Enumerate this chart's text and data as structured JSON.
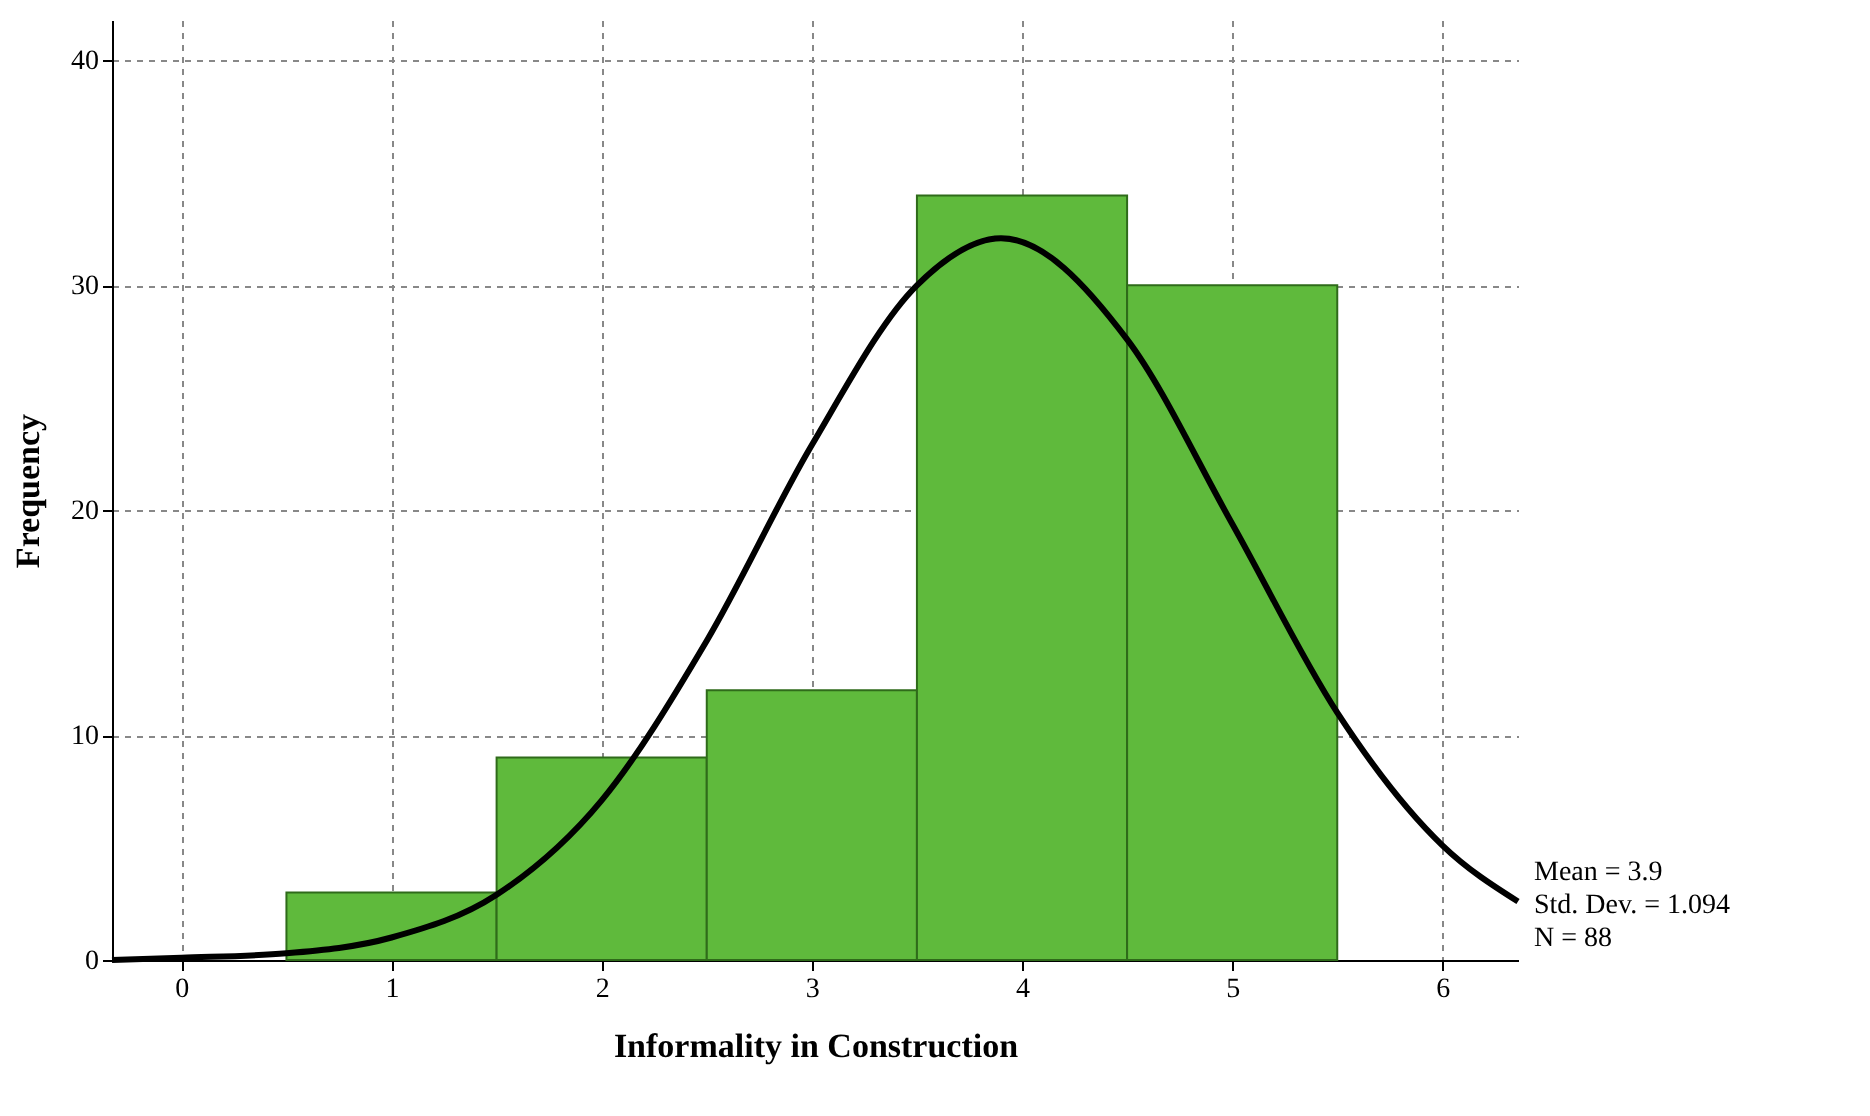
{
  "chart_data": {
    "type": "histogram",
    "xlabel": "Informality in Construction",
    "ylabel": "Frequency",
    "xlim": [
      -0.33,
      6.36
    ],
    "ylim": [
      0,
      41.8
    ],
    "xticks": [
      0,
      1,
      2,
      3,
      4,
      5,
      6
    ],
    "yticks": [
      0,
      10,
      20,
      30,
      40
    ],
    "grid": true,
    "marker": "none",
    "line_style": "solid",
    "annotations": [
      "Mean = 3.9",
      "Std. Dev. = 1.094",
      "N = 88"
    ],
    "series": [
      {
        "color": "#5fba3c",
        "bins": [
          0.5,
          1.5,
          2.5,
          3.5,
          4.5,
          5.5
        ],
        "values": [
          3,
          9,
          12,
          34,
          30
        ]
      },
      {
        "type": "line",
        "color": "#000000",
        "x": [
          -0.33,
          0,
          0.5,
          1,
          1.5,
          2,
          2.5,
          3,
          3.5,
          3.9,
          4.5,
          5,
          5.5,
          6,
          6.36
        ],
        "values": [
          0,
          0.1,
          0.3,
          1,
          2.9,
          7.1,
          14.2,
          22.9,
          30,
          32.1,
          27.6,
          19.4,
          11,
          5.1,
          2.6
        ]
      }
    ]
  }
}
